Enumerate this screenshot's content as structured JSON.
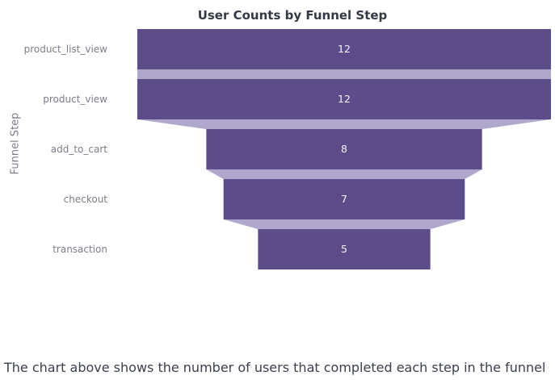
{
  "figure": {
    "title": "User Counts by Funnel Step",
    "y_axis_label": "Funnel Step"
  },
  "caption": "The chart above shows the number of users that completed each step in the funnel",
  "colors": {
    "bar": "#5d4c8a",
    "connector": "#b0a7cd",
    "title_text": "#343946",
    "axis_text": "#7d7d89",
    "value_text": "#f5f3f7",
    "caption_text": "#3b404b",
    "background": "#ffffff"
  },
  "chart_data": {
    "type": "funnel",
    "orientation": "horizontal",
    "title": "User Counts by Funnel Step",
    "ylabel": "Funnel Step",
    "xlabel": "",
    "categories": [
      "product_list_view",
      "product_view",
      "add_to_cart",
      "checkout",
      "transaction"
    ],
    "values": [
      12,
      12,
      8,
      7,
      5
    ],
    "value_labels": [
      "12",
      "12",
      "8",
      "7",
      "5"
    ],
    "max_value": 12,
    "legend": "none",
    "grid": false
  }
}
